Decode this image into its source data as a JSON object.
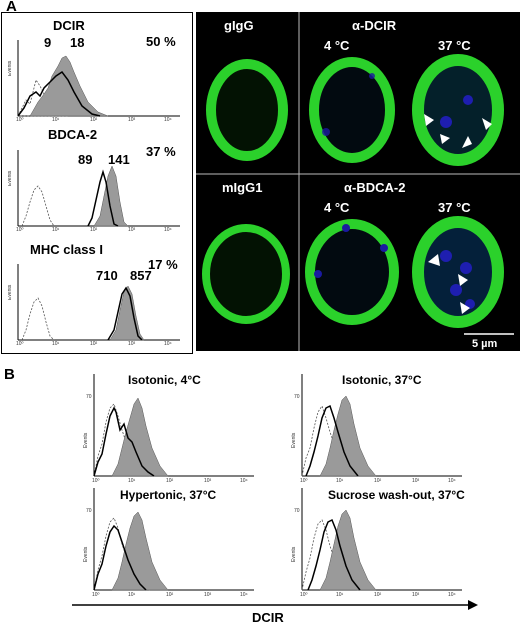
{
  "panelA": {
    "letter": "A",
    "histograms": [
      {
        "title": "DCIR",
        "percent": "50 %",
        "mfi1": "9",
        "mfi2": "18"
      },
      {
        "title": "BDCA-2",
        "percent": "37 %",
        "mfi1": "89",
        "mfi2": "141"
      },
      {
        "title": "MHC class I",
        "percent": "17 %",
        "mfi1": "710",
        "mfi2": "857"
      }
    ],
    "micrographs": {
      "top": {
        "control": "gIgG",
        "stain": "α-DCIR",
        "temp1": "4 °C",
        "temp2": "37 °C"
      },
      "bottom": {
        "control": "mIgG1",
        "stain": "α-BDCA-2",
        "temp1": "4 °C",
        "temp2": "37 °C"
      },
      "scale_bar": "5 µm",
      "colors": {
        "membrane": "#2bd12b",
        "nucleus": "#1a1aa0",
        "background": "#000000"
      }
    }
  },
  "panelB": {
    "letter": "B",
    "histograms": [
      {
        "title": "Isotonic, 4°C"
      },
      {
        "title": "Isotonic, 37°C"
      },
      {
        "title": "Hypertonic, 37°C"
      },
      {
        "title": "Sucrose wash-out, 37°C"
      }
    ],
    "x_axis_label": "DCIR"
  },
  "axis_text": {
    "y_label": "Events",
    "y_max": "70"
  }
}
